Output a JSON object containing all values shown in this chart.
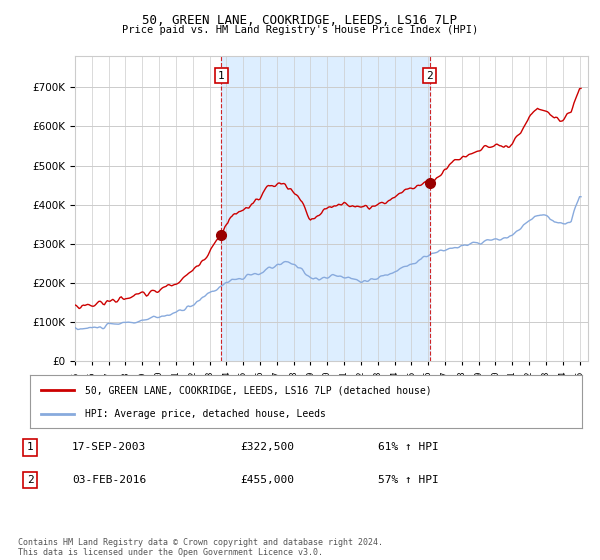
{
  "title": "50, GREEN LANE, COOKRIDGE, LEEDS, LS16 7LP",
  "subtitle": "Price paid vs. HM Land Registry's House Price Index (HPI)",
  "ylim": [
    0,
    780000
  ],
  "sale1_label": "17-SEP-2003",
  "sale1_price": 322500,
  "sale1_hpi": "61% ↑ HPI",
  "sale1_x": 2003.708,
  "sale2_label": "03-FEB-2016",
  "sale2_price": 455000,
  "sale2_hpi": "57% ↑ HPI",
  "sale2_x": 2016.083,
  "line_color_sold": "#cc0000",
  "line_color_hpi": "#88aadd",
  "shade_color": "#ddeeff",
  "legend_label_sold": "50, GREEN LANE, COOKRIDGE, LEEDS, LS16 7LP (detached house)",
  "legend_label_hpi": "HPI: Average price, detached house, Leeds",
  "footer": "Contains HM Land Registry data © Crown copyright and database right 2024.\nThis data is licensed under the Open Government Licence v3.0.",
  "background_color": "#ffffff",
  "grid_color": "#cccccc"
}
